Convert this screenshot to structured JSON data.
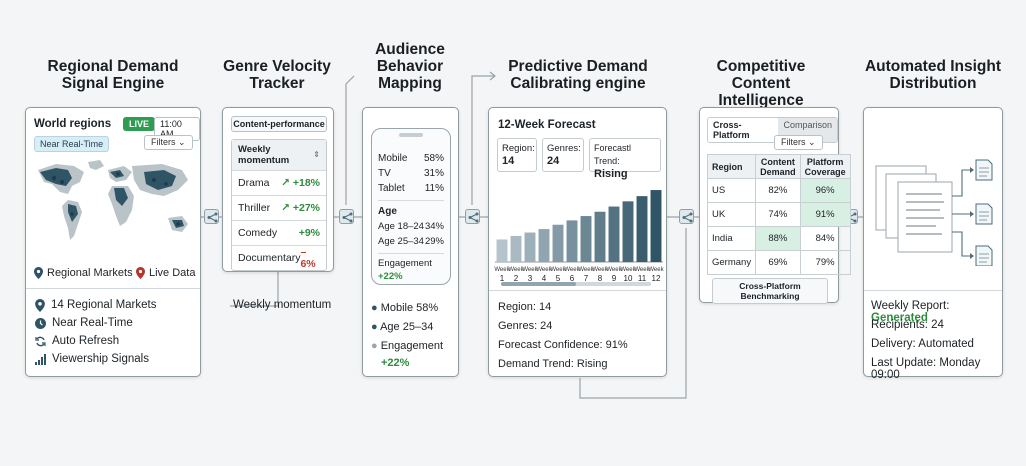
{
  "stages": [
    {
      "title_lines": [
        "Regional Demand",
        "Signal Engine"
      ]
    },
    {
      "title_lines": [
        "Genre Velocity",
        "Tracker"
      ]
    },
    {
      "title_lines": [
        "Audience",
        "Behavior",
        "Mapping"
      ]
    },
    {
      "title_lines": [
        "Predictive Demand",
        "Calibrating engine"
      ]
    },
    {
      "title_lines": [
        "Competitive Content",
        "Intelligence"
      ]
    },
    {
      "title_lines": [
        "Automated Insight",
        "Distribution"
      ]
    }
  ],
  "regional": {
    "header": "World regions",
    "live_badge": "LIVE",
    "time": "11:00 AM",
    "realtime_chip": "Near Real-Time",
    "filters": "Filters",
    "legend_markets": "Regional Markets",
    "legend_live": "Live Data",
    "list": [
      {
        "icon": "location-pin-icon",
        "text": "14 Regional Markets"
      },
      {
        "icon": "clock-icon",
        "text": "Near Real-Time"
      },
      {
        "icon": "refresh-icon",
        "text": "Auto Refresh"
      },
      {
        "icon": "signal-bars-icon",
        "text": "Viewership Signals"
      }
    ]
  },
  "genre": {
    "tab": "Content-performance",
    "header_lines": [
      "Weekly",
      "momentum"
    ],
    "rows": [
      {
        "name": "Drama",
        "value": "+18%",
        "arrow": true,
        "trend": "up"
      },
      {
        "name": "Thriller",
        "value": "+27%",
        "arrow": true,
        "trend": "up"
      },
      {
        "name": "Comedy",
        "value": "+9%",
        "arrow": false,
        "trend": "up"
      },
      {
        "name": "Documentary",
        "value": "–6%",
        "arrow": false,
        "trend": "down"
      }
    ],
    "caption": "Weekly momentum"
  },
  "audience": {
    "devices": [
      {
        "label": "Mobile",
        "value": "58%"
      },
      {
        "label": "TV",
        "value": "31%"
      },
      {
        "label": "Tablet",
        "value": "11%"
      }
    ],
    "age_title": "Age",
    "ages": [
      {
        "label": "Age 18–24",
        "value": "34%"
      },
      {
        "label": "Age 25–34",
        "value": "29%"
      }
    ],
    "engagement_label": "Engagement",
    "engagement_value": "+22%",
    "bullets": [
      "Mobile 58%",
      "Age 25–34",
      "Engagement"
    ],
    "bullet_value": "+22%"
  },
  "forecast": {
    "title": "12-Week Forecast",
    "boxes": [
      {
        "label": "Region:",
        "value": "14"
      },
      {
        "label": "Genres:",
        "value": "24"
      },
      {
        "label": "Forecastl Trend:",
        "value": "Rising"
      }
    ],
    "chart_data": {
      "type": "bar",
      "categories": [
        "1",
        "2",
        "3",
        "4",
        "5",
        "6",
        "7",
        "8",
        "9",
        "10",
        "11",
        "12"
      ],
      "category_prefix": "Week",
      "values": [
        26,
        30,
        34,
        38,
        43,
        48,
        53,
        58,
        64,
        70,
        76,
        83
      ],
      "ylim": [
        0,
        90
      ]
    },
    "summary": [
      "Region: 14",
      "Genres: 24",
      "Forecast Confidence: 91%",
      "Demand Trend: Rising"
    ]
  },
  "competitive": {
    "tab_active": "Cross-Platform",
    "tab_inactive": "Comparison",
    "filters": "Filters",
    "headers": [
      "Region",
      "Content Demand",
      "Platform Coverage"
    ],
    "rows": [
      {
        "region": "US",
        "demand": "82%",
        "coverage": "96%"
      },
      {
        "region": "UK",
        "demand": "74%",
        "coverage": "91%"
      },
      {
        "region": "India",
        "demand": "88%",
        "coverage": "84%"
      },
      {
        "region": "Germany",
        "demand": "69%",
        "coverage": "79%"
      }
    ],
    "footer": "Cross-Platform Benchmarking"
  },
  "distribution": {
    "report_label": "Weekly Report:",
    "report_value": "Generated",
    "recipients": "Recipients: 24",
    "delivery": "Delivery: Automated",
    "last_update": "Last Update: Monday 09:00"
  }
}
